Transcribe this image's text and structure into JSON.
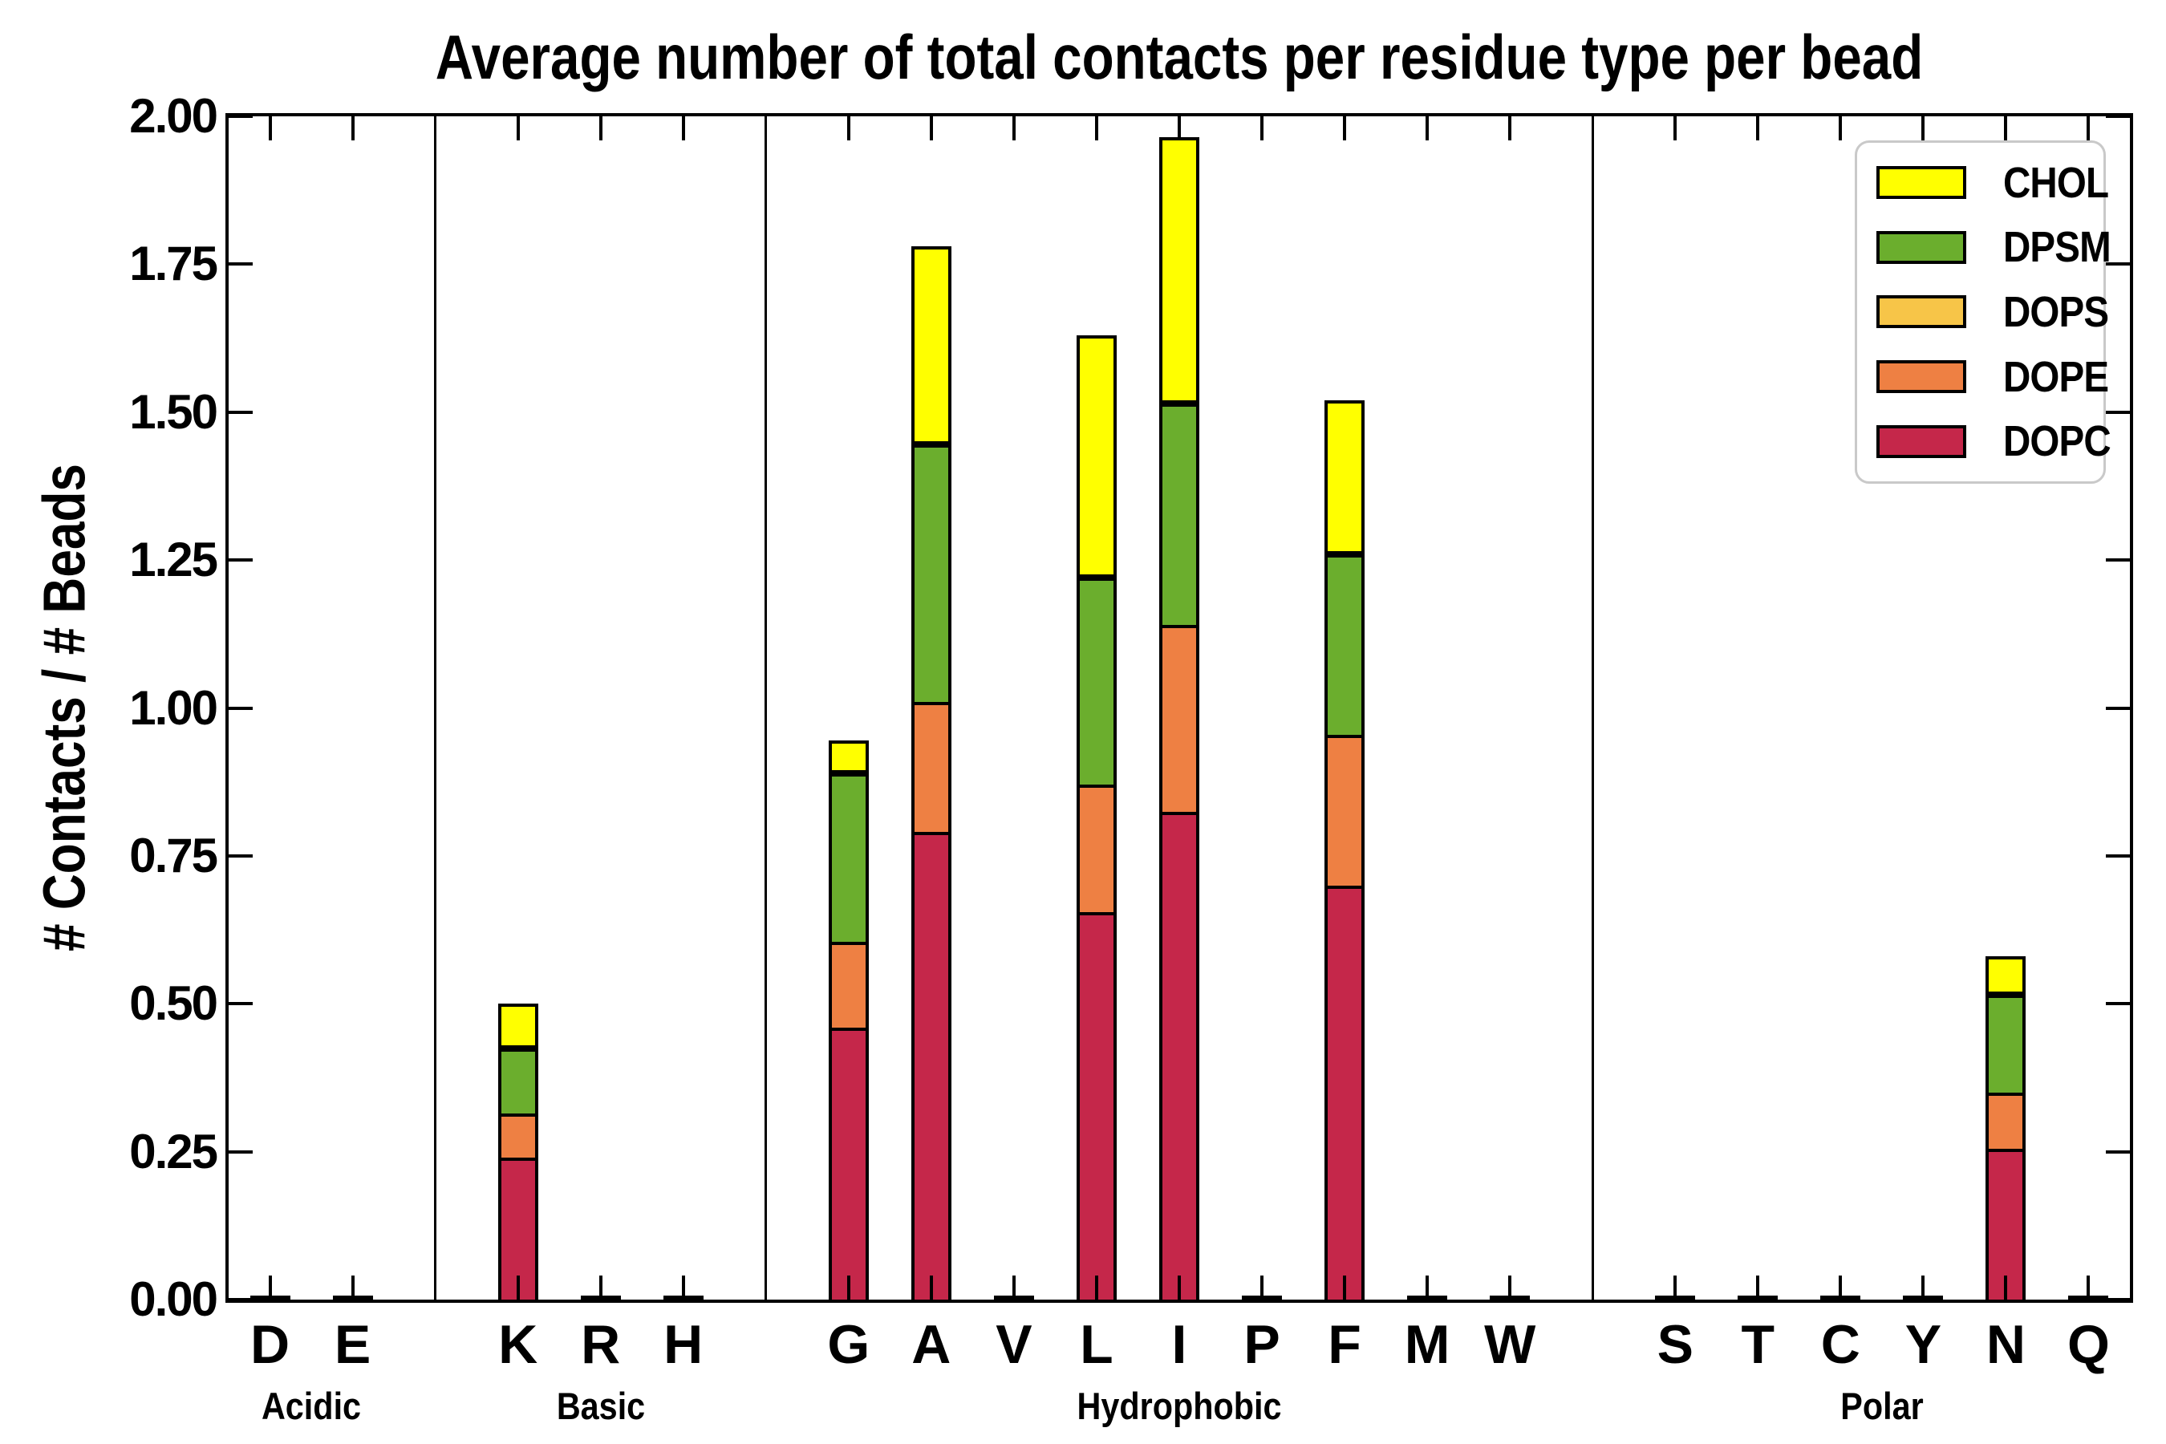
{
  "title": "Average number of total contacts per residue type per bead",
  "ylabel": "# Contacts / # Beads",
  "y_tick_labels": [
    "0.00",
    "0.25",
    "0.50",
    "0.75",
    "1.00",
    "1.25",
    "1.50",
    "1.75",
    "2.00"
  ],
  "legend": [
    {
      "label": "CHOL",
      "color": "#FFFF00"
    },
    {
      "label": "DPSM",
      "color": "#6BAE2D"
    },
    {
      "label": "DOPS",
      "color": "#F7C548"
    },
    {
      "label": "DOPE",
      "color": "#EE8043"
    },
    {
      "label": "DOPC",
      "color": "#C5274A"
    }
  ],
  "chart_data": {
    "type": "bar",
    "stacked": true,
    "title": "Average number of total contacts per residue type per bead",
    "xlabel": "",
    "ylabel": "# Contacts / # Beads",
    "ylim": [
      0,
      2.0
    ],
    "ytick_step": 0.25,
    "grid": false,
    "legend_position": "upper right",
    "groups": [
      {
        "label": "Acidic",
        "residues": [
          "D",
          "E"
        ]
      },
      {
        "label": "Basic",
        "residues": [
          "K",
          "R",
          "H"
        ]
      },
      {
        "label": "Hydrophobic",
        "residues": [
          "G",
          "A",
          "V",
          "L",
          "I",
          "P",
          "F",
          "M",
          "W"
        ]
      },
      {
        "label": "Polar",
        "residues": [
          "S",
          "T",
          "C",
          "Y",
          "N",
          "Q"
        ]
      }
    ],
    "categories": [
      "D",
      "E",
      "K",
      "R",
      "H",
      "G",
      "A",
      "V",
      "L",
      "I",
      "P",
      "F",
      "M",
      "W",
      "S",
      "T",
      "C",
      "Y",
      "N",
      "Q"
    ],
    "series": [
      {
        "name": "DOPC",
        "color": "#C5274A",
        "values": [
          0,
          0,
          0.24,
          0,
          0,
          0.46,
          0.79,
          0,
          0.655,
          0.825,
          0,
          0.7,
          0,
          0,
          0,
          0,
          0,
          0,
          0.255,
          0
        ]
      },
      {
        "name": "DOPE",
        "color": "#EE8043",
        "values": [
          0,
          0,
          0.075,
          0,
          0,
          0.145,
          0.22,
          0,
          0.215,
          0.315,
          0,
          0.255,
          0,
          0,
          0,
          0,
          0,
          0,
          0.095,
          0
        ]
      },
      {
        "name": "DOPS",
        "color": "#F7C548",
        "values": [
          0,
          0,
          0,
          0,
          0,
          0,
          0,
          0,
          0,
          0,
          0,
          0,
          0,
          0,
          0,
          0,
          0,
          0,
          0,
          0
        ]
      },
      {
        "name": "DPSM",
        "color": "#6BAE2D",
        "values": [
          0,
          0,
          0.11,
          0,
          0,
          0.285,
          0.435,
          0,
          0.35,
          0.375,
          0,
          0.305,
          0,
          0,
          0,
          0,
          0,
          0,
          0.165,
          0
        ]
      },
      {
        "name": "CHOL",
        "color": "#FFFF00",
        "values": [
          0,
          0,
          0.075,
          0,
          0,
          0.055,
          0.335,
          0,
          0.41,
          0.45,
          0,
          0.26,
          0,
          0,
          0,
          0,
          0,
          0,
          0.065,
          0
        ]
      }
    ],
    "bar_totals_note": "K=0.50 G=0.945 A=1.78 L=1.63 I=1.965 F=1.52 N=0.58; all other residues ~0"
  }
}
